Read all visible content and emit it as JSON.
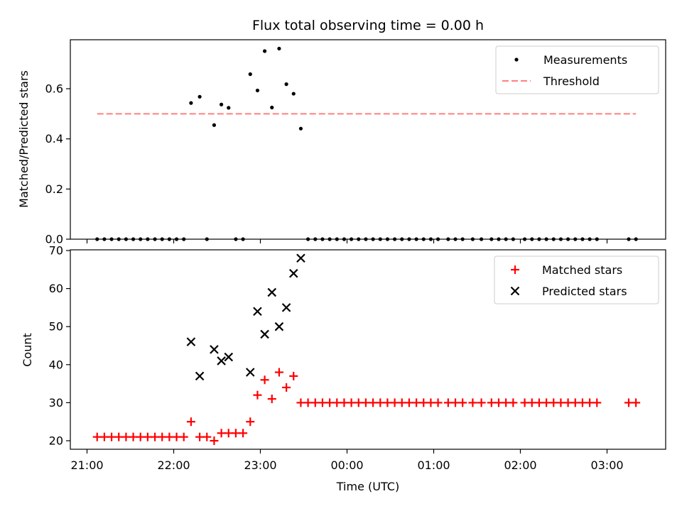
{
  "figure": {
    "title": "Flux total observing time = 0.00 h",
    "xlabel": "Time (UTC)"
  },
  "chart_data": [
    {
      "type": "scatter",
      "title": "Flux total observing time = 0.00 h",
      "xlabel": "",
      "ylabel": "Matched/Predicted stars",
      "ylim": [
        0.0,
        0.8
      ],
      "yticks": [
        "0.0",
        "0.2",
        "0.4",
        "0.6"
      ],
      "ytick_values": [
        0.0,
        0.2,
        0.4,
        0.6
      ],
      "xlim": [
        "21:00",
        "03:36"
      ],
      "legend": {
        "placement": "top-right",
        "entries": [
          "Measurements",
          "Threshold"
        ]
      },
      "grid": false,
      "series": [
        {
          "name": "Measurements",
          "kind": "points",
          "color": "#000000",
          "x": [
            "21:07",
            "21:12",
            "21:17",
            "21:22",
            "21:27",
            "21:32",
            "21:37",
            "21:42",
            "21:47",
            "21:52",
            "21:57",
            "22:02",
            "22:07",
            "22:12",
            "22:18",
            "22:23",
            "22:28",
            "22:33",
            "22:38",
            "22:43",
            "22:48",
            "22:53",
            "22:58",
            "23:03",
            "23:08",
            "23:13",
            "23:18",
            "23:23",
            "23:28",
            "23:33",
            "23:38",
            "23:43",
            "23:48",
            "23:53",
            "23:58",
            "00:03",
            "00:08",
            "00:13",
            "00:18",
            "00:23",
            "00:28",
            "00:33",
            "00:38",
            "00:43",
            "00:48",
            "00:53",
            "00:58",
            "01:03",
            "01:10",
            "01:15",
            "01:20",
            "01:27",
            "01:33",
            "01:40",
            "01:45",
            "01:50",
            "01:55",
            "02:03",
            "02:08",
            "02:13",
            "02:18",
            "02:23",
            "02:28",
            "02:33",
            "02:38",
            "02:43",
            "02:48",
            "02:53",
            "03:15",
            "03:20"
          ],
          "y": [
            0,
            0,
            0,
            0,
            0,
            0,
            0,
            0,
            0,
            0,
            0,
            0,
            0,
            0.543,
            0.568,
            0,
            0.455,
            0.537,
            0.524,
            0,
            0,
            0.658,
            0.593,
            0.75,
            0.525,
            0.76,
            0.618,
            0.58,
            0.441,
            0,
            0,
            0,
            0,
            0,
            0,
            0,
            0,
            0,
            0,
            0,
            0,
            0,
            0,
            0,
            0,
            0,
            0,
            0,
            0,
            0,
            0,
            0,
            0,
            0,
            0,
            0,
            0,
            0,
            0,
            0,
            0,
            0,
            0,
            0,
            0,
            0,
            0,
            0,
            0,
            0
          ]
        },
        {
          "name": "Threshold",
          "kind": "dashed-line",
          "color": "#ff7f7f",
          "x": [
            "21:07",
            "03:20"
          ],
          "y": [
            0.5,
            0.5
          ]
        }
      ]
    },
    {
      "type": "scatter",
      "title": "",
      "xlabel": "Time (UTC)",
      "ylabel": "Count",
      "ylim": [
        18,
        70
      ],
      "yticks": [
        "20",
        "30",
        "40",
        "50",
        "60",
        "70"
      ],
      "ytick_values": [
        20,
        30,
        40,
        50,
        60,
        70
      ],
      "xlim": [
        "21:00",
        "03:36"
      ],
      "xticks": [
        "21:00",
        "22:00",
        "23:00",
        "00:00",
        "01:00",
        "02:00",
        "03:00"
      ],
      "legend": {
        "placement": "top-right",
        "entries": [
          "Matched stars",
          "Predicted stars"
        ]
      },
      "grid": false,
      "series": [
        {
          "name": "Matched stars",
          "marker": "plus",
          "color": "#ff0000",
          "x": [
            "21:07",
            "21:12",
            "21:17",
            "21:22",
            "21:27",
            "21:32",
            "21:37",
            "21:42",
            "21:47",
            "21:52",
            "21:57",
            "22:02",
            "22:07",
            "22:12",
            "22:18",
            "22:23",
            "22:28",
            "22:33",
            "22:38",
            "22:43",
            "22:48",
            "22:53",
            "22:58",
            "23:03",
            "23:08",
            "23:13",
            "23:18",
            "23:23",
            "23:28",
            "23:33",
            "23:38",
            "23:43",
            "23:48",
            "23:53",
            "23:58",
            "00:03",
            "00:08",
            "00:13",
            "00:18",
            "00:23",
            "00:28",
            "00:33",
            "00:38",
            "00:43",
            "00:48",
            "00:53",
            "00:58",
            "01:03",
            "01:10",
            "01:15",
            "01:20",
            "01:27",
            "01:33",
            "01:40",
            "01:45",
            "01:50",
            "01:55",
            "02:03",
            "02:08",
            "02:13",
            "02:18",
            "02:23",
            "02:28",
            "02:33",
            "02:38",
            "02:43",
            "02:48",
            "02:53",
            "03:15",
            "03:20"
          ],
          "y": [
            21,
            21,
            21,
            21,
            21,
            21,
            21,
            21,
            21,
            21,
            21,
            21,
            21,
            25,
            21,
            21,
            20,
            22,
            22,
            22,
            22,
            25,
            32,
            36,
            31,
            38,
            34,
            37,
            30,
            30,
            30,
            30,
            30,
            30,
            30,
            30,
            30,
            30,
            30,
            30,
            30,
            30,
            30,
            30,
            30,
            30,
            30,
            30,
            30,
            30,
            30,
            30,
            30,
            30,
            30,
            30,
            30,
            30,
            30,
            30,
            30,
            30,
            30,
            30,
            30,
            30,
            30,
            30,
            30,
            30
          ]
        },
        {
          "name": "Predicted stars",
          "marker": "x",
          "color": "#000000",
          "x": [
            "22:12",
            "22:18",
            "22:28",
            "22:33",
            "22:38",
            "22:53",
            "22:58",
            "23:03",
            "23:08",
            "23:13",
            "23:18",
            "23:23",
            "23:28"
          ],
          "y": [
            46,
            37,
            44,
            41,
            42,
            38,
            54,
            48,
            59,
            50,
            55,
            64,
            68
          ]
        }
      ]
    }
  ]
}
